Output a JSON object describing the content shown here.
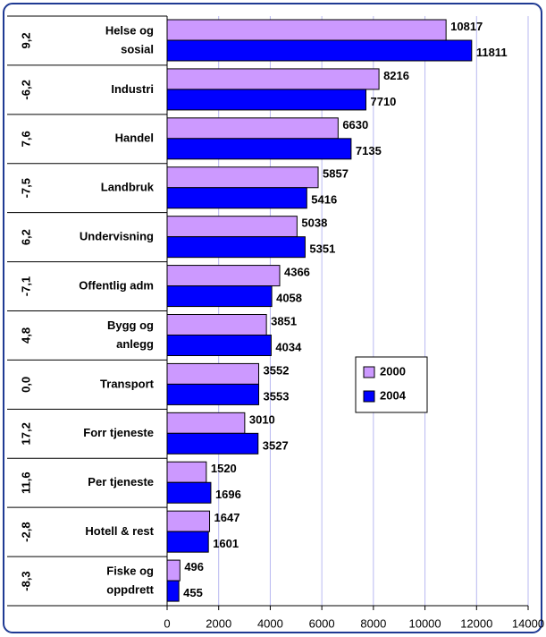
{
  "chart_data": {
    "type": "bar",
    "orientation": "horizontal",
    "categories": [
      [
        "Helse og",
        "sosial"
      ],
      [
        "Industri"
      ],
      [
        "Handel"
      ],
      [
        "Landbruk"
      ],
      [
        "Undervisning"
      ],
      [
        "Offentlig adm"
      ],
      [
        "Bygg og",
        "anlegg"
      ],
      [
        "Transport"
      ],
      [
        "Forr tjeneste"
      ],
      [
        "Per tjeneste"
      ],
      [
        "Hotell & rest"
      ],
      [
        "Fiske og",
        "oppdrett"
      ]
    ],
    "changes": [
      "9,2",
      "-6,2",
      "7,6",
      "-7,5",
      "6,2",
      "-7,1",
      "4,8",
      "0,0",
      "17,2",
      "11,6",
      "-2,8",
      "-8,3"
    ],
    "series": [
      {
        "name": "2000",
        "color": "#cc99ff",
        "values": [
          10817,
          8216,
          6630,
          5857,
          5038,
          4366,
          3851,
          3552,
          3010,
          1520,
          1647,
          496
        ]
      },
      {
        "name": "2004",
        "color": "#0000ff",
        "values": [
          11811,
          7710,
          7135,
          5416,
          5351,
          4058,
          4034,
          3553,
          3527,
          1696,
          1601,
          455
        ]
      }
    ],
    "xlim": [
      0,
      14000
    ],
    "xticks": [
      0,
      2000,
      4000,
      6000,
      8000,
      10000,
      12000,
      14000
    ],
    "grid": true,
    "legend": "right"
  }
}
